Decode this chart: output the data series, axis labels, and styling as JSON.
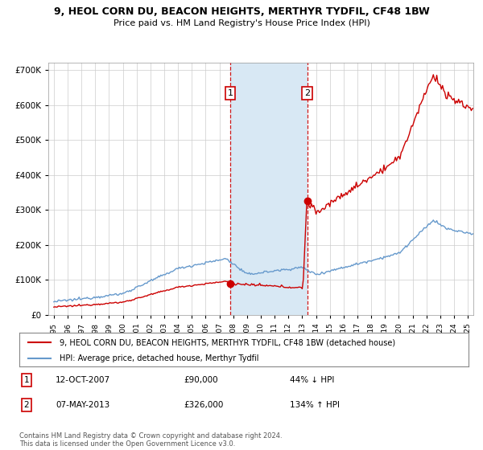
{
  "title": "9, HEOL CORN DU, BEACON HEIGHTS, MERTHYR TYDFIL, CF48 1BW",
  "subtitle": "Price paid vs. HM Land Registry's House Price Index (HPI)",
  "legend_line1": "9, HEOL CORN DU, BEACON HEIGHTS, MERTHYR TYDFIL, CF48 1BW (detached house)",
  "legend_line2": "HPI: Average price, detached house, Merthyr Tydfil",
  "sale1_label": "1",
  "sale1_date": "12-OCT-2007",
  "sale1_price": "£90,000",
  "sale1_hpi": "44% ↓ HPI",
  "sale1_x": 2007.79,
  "sale1_y": 90000,
  "sale2_label": "2",
  "sale2_date": "07-MAY-2013",
  "sale2_price": "£326,000",
  "sale2_hpi": "134% ↑ HPI",
  "sale2_x": 2013.36,
  "sale2_y": 326000,
  "footer": "Contains HM Land Registry data © Crown copyright and database right 2024.\nThis data is licensed under the Open Government Licence v3.0.",
  "hpi_color": "#6699CC",
  "sale_color": "#CC0000",
  "shade_color": "#D8E8F4",
  "ylim": [
    0,
    720000
  ],
  "xlim_start": 1994.6,
  "xlim_end": 2025.4
}
